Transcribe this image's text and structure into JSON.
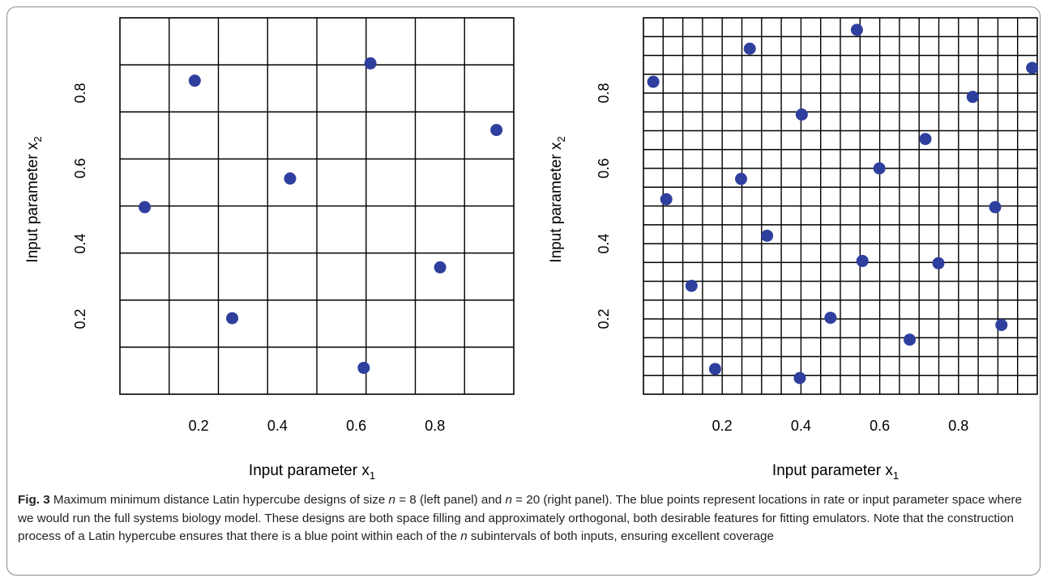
{
  "chart_data": [
    {
      "type": "scatter",
      "panel": "left",
      "xlabel": "Input parameter x",
      "xlabel_sub": "1",
      "ylabel": "Input parameter x",
      "ylabel_sub": "2",
      "xlim": [
        0.0,
        1.0
      ],
      "ylim": [
        0.0,
        1.0
      ],
      "x_ticks": [
        0.2,
        0.4,
        0.6,
        0.8
      ],
      "x_tick_labels": [
        "0.2",
        "0.4",
        "0.6",
        "0.8"
      ],
      "y_ticks": [
        0.2,
        0.4,
        0.6,
        0.8
      ],
      "y_tick_labels": [
        "0.2",
        "0.4",
        "0.6",
        "0.8"
      ],
      "grid_divisions": 8,
      "grid": true,
      "point_color": "#2e3f9e",
      "points": [
        {
          "x": 0.063,
          "y": 0.497
        },
        {
          "x": 0.19,
          "y": 0.833
        },
        {
          "x": 0.285,
          "y": 0.202
        },
        {
          "x": 0.432,
          "y": 0.573
        },
        {
          "x": 0.619,
          "y": 0.07
        },
        {
          "x": 0.636,
          "y": 0.879
        },
        {
          "x": 0.813,
          "y": 0.337
        },
        {
          "x": 0.956,
          "y": 0.702
        }
      ]
    },
    {
      "type": "scatter",
      "panel": "right",
      "xlabel": "Input parameter x",
      "xlabel_sub": "1",
      "ylabel": "Input parameter x",
      "ylabel_sub": "2",
      "xlim": [
        0.0,
        1.0
      ],
      "ylim": [
        0.0,
        1.0
      ],
      "x_ticks": [
        0.2,
        0.4,
        0.6,
        0.8
      ],
      "x_tick_labels": [
        "0.2",
        "0.4",
        "0.6",
        "0.8"
      ],
      "y_ticks": [
        0.2,
        0.4,
        0.6,
        0.8
      ],
      "y_tick_labels": [
        "0.2",
        "0.4",
        "0.6",
        "0.8"
      ],
      "grid_divisions": 20,
      "grid": true,
      "point_color": "#2e3f9e",
      "points": [
        {
          "x": 0.025,
          "y": 0.83
        },
        {
          "x": 0.058,
          "y": 0.518
        },
        {
          "x": 0.122,
          "y": 0.288
        },
        {
          "x": 0.182,
          "y": 0.067
        },
        {
          "x": 0.248,
          "y": 0.572
        },
        {
          "x": 0.27,
          "y": 0.918
        },
        {
          "x": 0.314,
          "y": 0.421
        },
        {
          "x": 0.397,
          "y": 0.043
        },
        {
          "x": 0.402,
          "y": 0.743
        },
        {
          "x": 0.475,
          "y": 0.203
        },
        {
          "x": 0.542,
          "y": 0.968
        },
        {
          "x": 0.556,
          "y": 0.354
        },
        {
          "x": 0.599,
          "y": 0.6
        },
        {
          "x": 0.676,
          "y": 0.145
        },
        {
          "x": 0.716,
          "y": 0.678
        },
        {
          "x": 0.749,
          "y": 0.348
        },
        {
          "x": 0.836,
          "y": 0.79
        },
        {
          "x": 0.893,
          "y": 0.497
        },
        {
          "x": 0.909,
          "y": 0.184
        },
        {
          "x": 0.987,
          "y": 0.867
        }
      ]
    }
  ],
  "caption": {
    "label": "Fig. 3",
    "text_1": " Maximum minimum distance Latin hypercube designs of size ",
    "var_n": "n",
    "eq_8": " = 8 (left panel) and ",
    "var_n2": "n",
    "eq_20": " = 20 (right panel). The blue points represent locations in rate or input parameter space where we would run the full systems biology model. These designs are both space filling and approximately orthogonal, both desirable features for fitting emulators. Note that the construction process of a Latin hypercube ensures that there is a blue point within each of the ",
    "var_n3": "n",
    "text_end": " subintervals of both inputs, ensuring excellent coverage"
  }
}
